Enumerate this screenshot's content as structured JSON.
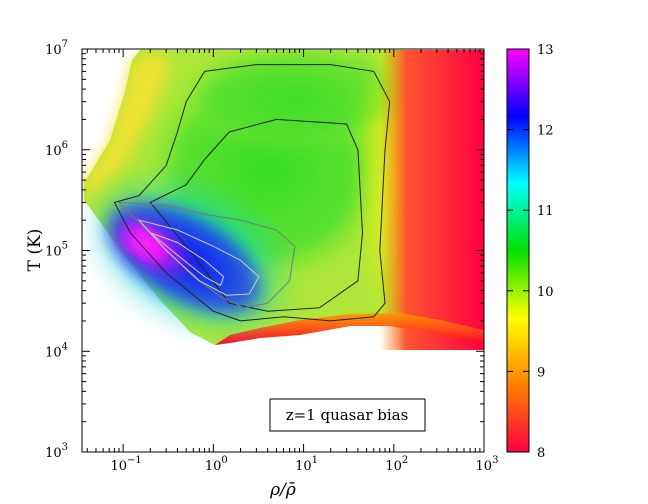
{
  "chart_data": {
    "type": "heatmap",
    "title": "",
    "xlabel": "ρ/ρ̄",
    "ylabel": "T (K)",
    "xscale": "log",
    "yscale": "log",
    "xlim": [
      0.035,
      1000
    ],
    "ylim": [
      1000,
      10000000
    ],
    "x_ticks": [
      {
        "value": 0.1,
        "base": "10",
        "exp": "−1"
      },
      {
        "value": 1,
        "base": "10",
        "exp": "0"
      },
      {
        "value": 10,
        "base": "10",
        "exp": "1"
      },
      {
        "value": 100,
        "base": "10",
        "exp": "2"
      },
      {
        "value": 1000,
        "base": "10",
        "exp": "3"
      }
    ],
    "y_ticks": [
      {
        "value": 1000,
        "base": "10",
        "exp": "3"
      },
      {
        "value": 10000,
        "base": "10",
        "exp": "4"
      },
      {
        "value": 100000,
        "base": "10",
        "exp": "5"
      },
      {
        "value": 1000000,
        "base": "10",
        "exp": "6"
      },
      {
        "value": 10000000,
        "base": "10",
        "exp": "7"
      }
    ],
    "annotation": "z=1 quasar bias",
    "colorbar": {
      "min": 8,
      "max": 13,
      "ticks": [
        "8",
        "9",
        "10",
        "11",
        "12",
        "13"
      ],
      "colormap": [
        "#ff0040",
        "#ff8000",
        "#ffff00",
        "#00e000",
        "#00ffff",
        "#0000ff",
        "#ff00ff"
      ]
    },
    "contours": [
      {
        "shade": "dark",
        "points": [
          [
            0.08,
            300000
          ],
          [
            0.12,
            150000
          ],
          [
            0.3,
            60000
          ],
          [
            1,
            25000
          ],
          [
            2,
            20000
          ],
          [
            6,
            22000
          ],
          [
            20,
            20000
          ],
          [
            60,
            22000
          ],
          [
            80,
            30000
          ],
          [
            70,
            100000
          ],
          [
            80,
            1000000
          ],
          [
            90,
            3000000
          ],
          [
            60,
            6000000
          ],
          [
            20,
            7000000
          ],
          [
            3,
            7000000
          ],
          [
            0.8,
            6000000
          ],
          [
            0.5,
            3000000
          ],
          [
            0.4,
            1500000
          ],
          [
            0.3,
            700000
          ],
          [
            0.15,
            350000
          ],
          [
            0.08,
            300000
          ]
        ]
      },
      {
        "shade": "dark",
        "points": [
          [
            0.2,
            300000
          ],
          [
            0.6,
            90000
          ],
          [
            1.5,
            30000
          ],
          [
            4,
            25000
          ],
          [
            15,
            27000
          ],
          [
            40,
            50000
          ],
          [
            45,
            150000
          ],
          [
            40,
            1000000
          ],
          [
            30,
            1800000
          ],
          [
            5,
            2000000
          ],
          [
            1.5,
            1500000
          ],
          [
            0.8,
            800000
          ],
          [
            0.5,
            450000
          ],
          [
            0.2,
            300000
          ]
        ]
      },
      {
        "shade": "gray",
        "points": [
          [
            0.09,
            300000
          ],
          [
            0.25,
            120000
          ],
          [
            0.6,
            55000
          ],
          [
            1.2,
            35000
          ],
          [
            2.2,
            27000
          ],
          [
            4,
            30000
          ],
          [
            7,
            50000
          ],
          [
            8,
            110000
          ],
          [
            5,
            160000
          ],
          [
            2,
            200000
          ],
          [
            0.8,
            230000
          ],
          [
            0.3,
            280000
          ],
          [
            0.09,
            300000
          ]
        ]
      },
      {
        "shade": "light",
        "points": [
          [
            0.15,
            200000
          ],
          [
            0.3,
            100000
          ],
          [
            0.7,
            50000
          ],
          [
            1.4,
            36000
          ],
          [
            2.5,
            37000
          ],
          [
            3.2,
            55000
          ],
          [
            2,
            80000
          ],
          [
            1,
            110000
          ],
          [
            0.4,
            160000
          ],
          [
            0.15,
            200000
          ]
        ]
      },
      {
        "shade": "light",
        "points": [
          [
            0.2,
            150000
          ],
          [
            0.4,
            90000
          ],
          [
            0.8,
            55000
          ],
          [
            1.2,
            45000
          ],
          [
            1.3,
            55000
          ],
          [
            0.8,
            80000
          ],
          [
            0.4,
            120000
          ],
          [
            0.2,
            150000
          ]
        ]
      }
    ]
  }
}
